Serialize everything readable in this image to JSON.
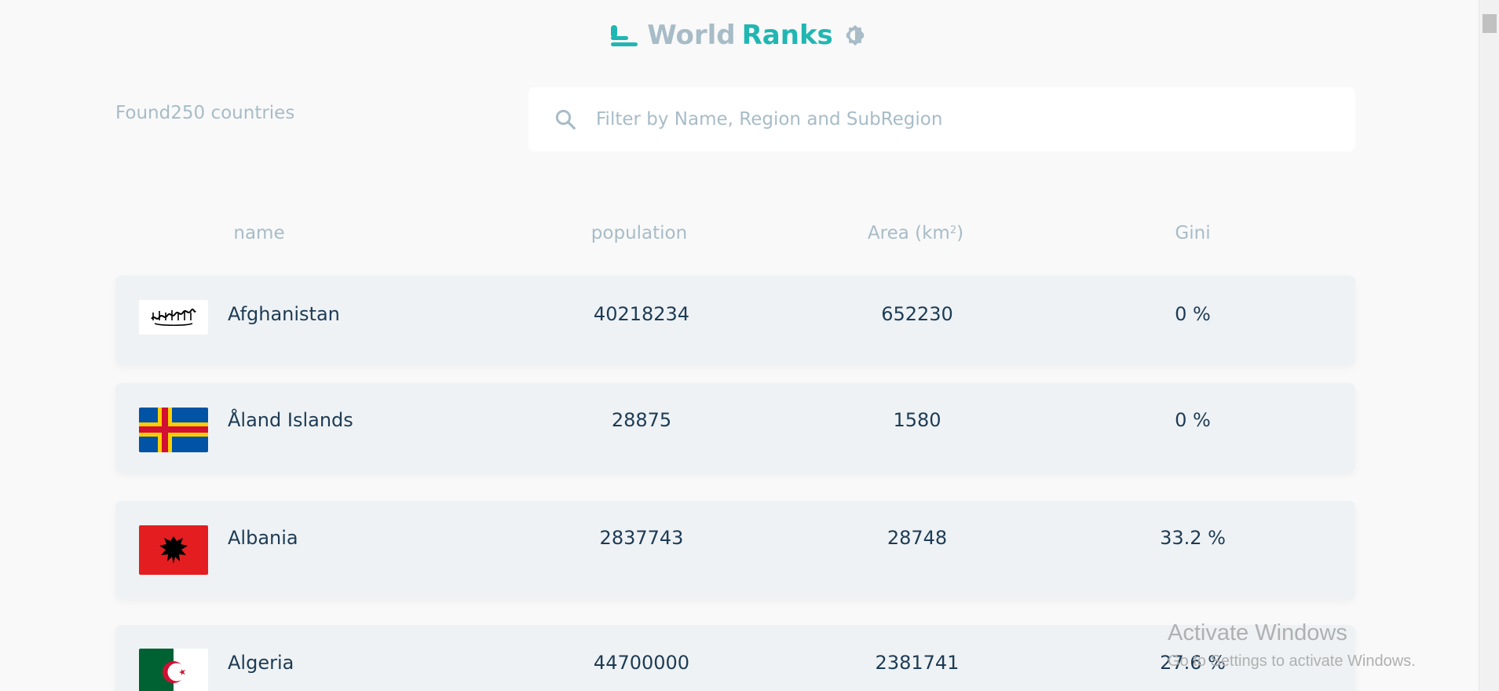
{
  "header": {
    "title_part1": "World",
    "title_part2": "Ranks",
    "logo_icon": "bars-logo-icon",
    "theme_icon": "brightness-icon",
    "accent_color": "#21b6b2",
    "muted_color": "#a7bcc7"
  },
  "toolbar": {
    "found_text": "Found250 countries",
    "search": {
      "placeholder": "Filter by Name, Region and SubRegion",
      "value": "",
      "icon": "search-icon"
    }
  },
  "table": {
    "columns": {
      "name": "name",
      "population": "population",
      "area": "Area (km",
      "area_sup": "2",
      "area_close": ")",
      "gini": "Gini"
    },
    "rows": [
      {
        "name": "Afghanistan",
        "population": "40218234",
        "area": "652230",
        "gini": "0 %",
        "flag": "afghanistan-flag"
      },
      {
        "name": "Åland Islands",
        "population": "28875",
        "area": "1580",
        "gini": "0 %",
        "flag": "aland-islands-flag"
      },
      {
        "name": "Albania",
        "population": "2837743",
        "area": "28748",
        "gini": "33.2 %",
        "flag": "albania-flag"
      },
      {
        "name": "Algeria",
        "population": "44700000",
        "area": "2381741",
        "gini": "27.6 %",
        "flag": "algeria-flag"
      }
    ]
  },
  "watermark": {
    "line1": "Activate Windows",
    "line2": "Go to Settings to activate Windows."
  }
}
